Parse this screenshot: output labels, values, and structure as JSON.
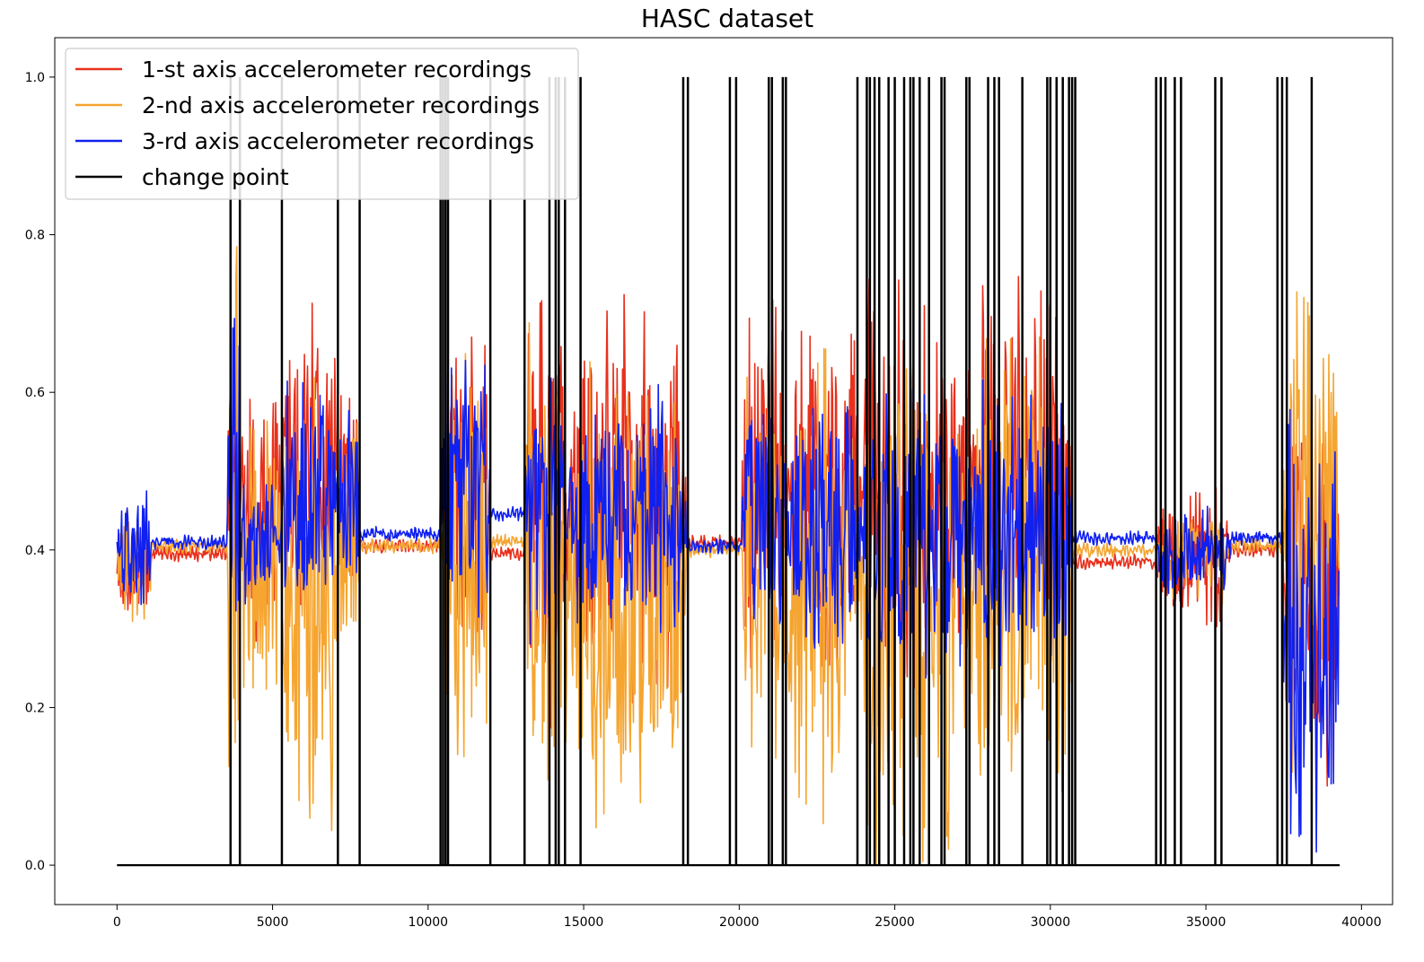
{
  "chart_data": {
    "type": "line",
    "title": "HASC dataset",
    "xlabel": "",
    "ylabel": "",
    "xlim": [
      -2000,
      41000
    ],
    "ylim": [
      -0.05,
      1.05
    ],
    "x_ticks": [
      0,
      5000,
      10000,
      15000,
      20000,
      25000,
      30000,
      35000,
      40000
    ],
    "y_ticks": [
      0.0,
      0.2,
      0.4,
      0.6,
      0.8,
      1.0
    ],
    "x_tick_labels": [
      "0",
      "5000",
      "10000",
      "15000",
      "20000",
      "25000",
      "30000",
      "35000",
      "40000"
    ],
    "y_tick_labels": [
      "0.0",
      "0.2",
      "0.4",
      "0.6",
      "0.8",
      "1.0"
    ],
    "grid": false,
    "legend_position": "top-left",
    "n_samples": 39300,
    "series": [
      {
        "name": "1-st axis accelerometer recordings",
        "color": "#e8301c"
      },
      {
        "name": "2-nd axis accelerometer recordings",
        "color": "#f5a530"
      },
      {
        "name": "3-rd axis accelerometer recordings",
        "color": "#1020f0"
      },
      {
        "name": "change point",
        "color": "#000000"
      }
    ],
    "segments": [
      {
        "start": 0,
        "end": 1100,
        "state": "active",
        "r": [
          0.3,
          0.45
        ],
        "o": [
          0.3,
          0.46
        ],
        "b": [
          0.32,
          0.49
        ]
      },
      {
        "start": 1100,
        "end": 3550,
        "state": "still",
        "r": 0.395,
        "o": 0.405,
        "b": 0.41
      },
      {
        "start": 3550,
        "end": 3950,
        "state": "active",
        "r": [
          0.15,
          0.7
        ],
        "o": [
          0.0,
          0.8
        ],
        "b": [
          0.1,
          0.85
        ]
      },
      {
        "start": 3950,
        "end": 5300,
        "state": "active",
        "r": [
          0.28,
          0.6
        ],
        "o": [
          0.2,
          0.58
        ],
        "b": [
          0.32,
          0.5
        ]
      },
      {
        "start": 5300,
        "end": 7100,
        "state": "active",
        "r": [
          0.3,
          0.72
        ],
        "o": [
          0.04,
          0.62
        ],
        "b": [
          0.3,
          0.62
        ]
      },
      {
        "start": 7100,
        "end": 7800,
        "state": "active",
        "r": [
          0.32,
          0.62
        ],
        "o": [
          0.22,
          0.6
        ],
        "b": [
          0.33,
          0.58
        ]
      },
      {
        "start": 7800,
        "end": 10400,
        "state": "still",
        "r": 0.405,
        "o": 0.405,
        "b": 0.42
      },
      {
        "start": 10400,
        "end": 12000,
        "state": "active",
        "r": [
          0.28,
          0.68
        ],
        "o": [
          0.1,
          0.65
        ],
        "b": [
          0.3,
          0.66
        ]
      },
      {
        "start": 12000,
        "end": 13100,
        "state": "still",
        "r": 0.395,
        "o": 0.41,
        "b": 0.445
      },
      {
        "start": 13100,
        "end": 14500,
        "state": "active",
        "r": [
          0.15,
          0.72
        ],
        "o": [
          0.05,
          0.7
        ],
        "b": [
          0.25,
          0.62
        ]
      },
      {
        "start": 14500,
        "end": 18300,
        "state": "active",
        "r": [
          0.2,
          0.73
        ],
        "o": [
          0.03,
          0.65
        ],
        "b": [
          0.28,
          0.61
        ]
      },
      {
        "start": 18300,
        "end": 20100,
        "state": "still",
        "r": 0.41,
        "o": 0.4,
        "b": 0.405
      },
      {
        "start": 20100,
        "end": 21500,
        "state": "active",
        "r": [
          0.25,
          0.72
        ],
        "o": [
          0.1,
          0.68
        ],
        "b": [
          0.3,
          0.62
        ]
      },
      {
        "start": 21500,
        "end": 23900,
        "state": "active",
        "r": [
          0.25,
          0.7
        ],
        "o": [
          0.05,
          0.66
        ],
        "b": [
          0.27,
          0.6
        ]
      },
      {
        "start": 23900,
        "end": 26200,
        "state": "active",
        "r": [
          0.22,
          0.75
        ],
        "o": [
          0.0,
          0.7
        ],
        "b": [
          0.22,
          0.62
        ]
      },
      {
        "start": 26200,
        "end": 27500,
        "state": "active",
        "r": [
          0.25,
          0.7
        ],
        "o": [
          0.0,
          0.65
        ],
        "b": [
          0.24,
          0.6
        ]
      },
      {
        "start": 27500,
        "end": 30700,
        "state": "active",
        "r": [
          0.25,
          0.75
        ],
        "o": [
          0.05,
          0.68
        ],
        "b": [
          0.22,
          0.62
        ]
      },
      {
        "start": 30700,
        "end": 33400,
        "state": "still",
        "r": 0.385,
        "o": 0.4,
        "b": 0.415
      },
      {
        "start": 33400,
        "end": 35800,
        "state": "burst",
        "r": [
          0.3,
          0.48
        ],
        "o": [
          0.33,
          0.46
        ],
        "b": [
          0.33,
          0.46
        ]
      },
      {
        "start": 35800,
        "end": 37500,
        "state": "still",
        "r": 0.4,
        "o": 0.405,
        "b": 0.415
      },
      {
        "start": 37500,
        "end": 39300,
        "state": "active",
        "r": [
          0.1,
          0.62
        ],
        "o": [
          0.1,
          0.75
        ],
        "b": [
          0.0,
          0.6
        ]
      }
    ],
    "change_points": [
      3650,
      3950,
      5300,
      7100,
      7800,
      10400,
      10480,
      10560,
      10640,
      12000,
      13100,
      13900,
      14100,
      14200,
      14400,
      14900,
      18200,
      18350,
      19700,
      19900,
      20950,
      21050,
      21400,
      21500,
      23800,
      24100,
      24200,
      24350,
      24500,
      24800,
      25000,
      25300,
      25500,
      25600,
      25800,
      26100,
      26500,
      26600,
      27300,
      27400,
      28000,
      28200,
      28350,
      29100,
      29900,
      30000,
      30200,
      30400,
      30600,
      30700,
      30800,
      33400,
      33550,
      33700,
      34000,
      34200,
      35300,
      35500,
      37300,
      37450,
      37600,
      38400
    ]
  }
}
